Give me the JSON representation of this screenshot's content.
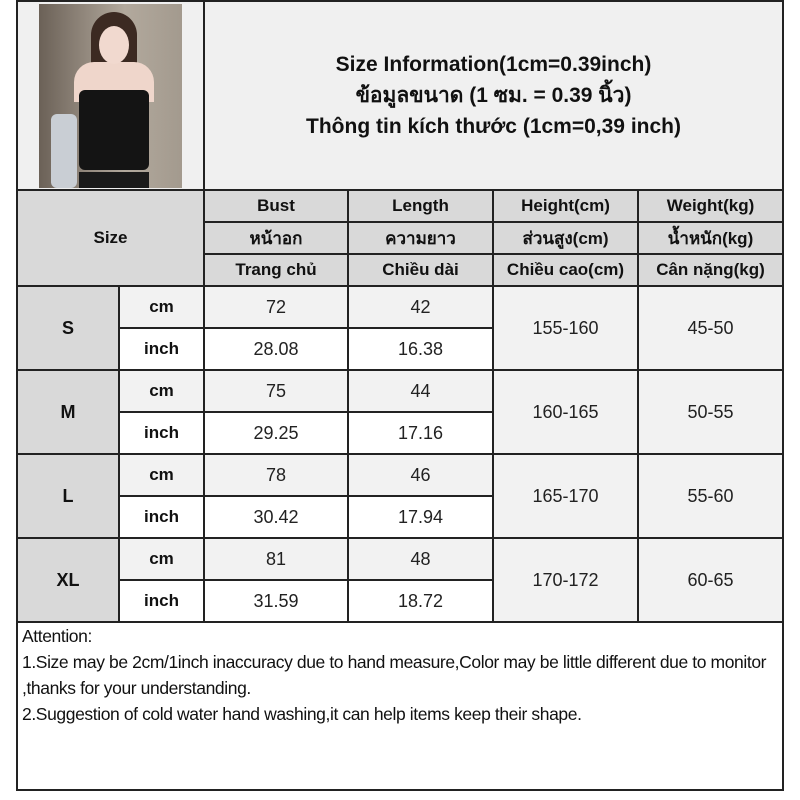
{
  "title_lines": [
    "Size Information(1cm=0.39inch)",
    "ข้อมูลขนาด (1 ซม. = 0.39 นิ้ว)",
    "Thông tin kích thước (1cm=0,39 inch)"
  ],
  "size_header": "Size",
  "columns": [
    {
      "en": "Bust",
      "th": "หน้าอก",
      "vi": "Trang chủ"
    },
    {
      "en": "Length",
      "th": "ความยาว",
      "vi": "Chiều dài"
    },
    {
      "en": "Height(cm)",
      "th": "ส่วนสูง(cm)",
      "vi": "Chiều cao(cm)"
    },
    {
      "en": "Weight(kg)",
      "th": "น้ำหนัก(kg)",
      "vi": "Cân nặng(kg)"
    }
  ],
  "units": {
    "cm": "cm",
    "inch": "inch"
  },
  "rows": [
    {
      "size": "S",
      "cm": {
        "bust": "72",
        "length": "42"
      },
      "inch": {
        "bust": "28.08",
        "length": "16.38"
      },
      "height": "155-160",
      "weight": "45-50"
    },
    {
      "size": "M",
      "cm": {
        "bust": "75",
        "length": "44"
      },
      "inch": {
        "bust": "29.25",
        "length": "17.16"
      },
      "height": "160-165",
      "weight": "50-55"
    },
    {
      "size": "L",
      "cm": {
        "bust": "78",
        "length": "46"
      },
      "inch": {
        "bust": "30.42",
        "length": "17.94"
      },
      "height": "165-170",
      "weight": "55-60"
    },
    {
      "size": "XL",
      "cm": {
        "bust": "81",
        "length": "48"
      },
      "inch": {
        "bust": "31.59",
        "length": "18.72"
      },
      "height": "170-172",
      "weight": "60-65"
    }
  ],
  "attention": {
    "heading": "Attention:",
    "lines": [
      "1.Size may be 2cm/1inch inaccuracy due to hand measure,Color may be little different due to monitor ,thanks for your understanding.",
      "2.Suggestion of cold water hand washing,it can help items keep their shape."
    ]
  },
  "colors": {
    "header_bg": "#d9d9d9",
    "cm_row_bg": "#f2f2f2",
    "inch_row_bg": "#ffffff",
    "border": "#222222"
  }
}
